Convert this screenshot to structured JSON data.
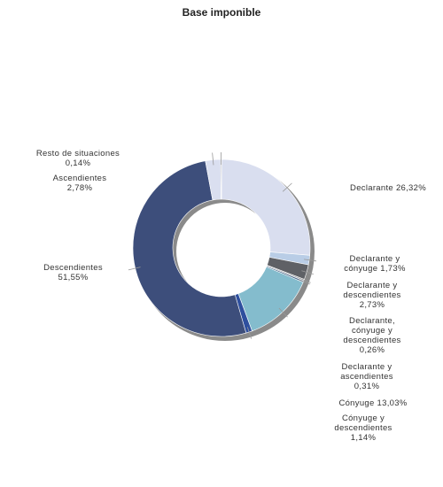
{
  "chart_data": {
    "type": "donut",
    "title": "Base imponible",
    "categories": [
      "Declarante",
      "Declarante y cónyuge",
      "Declarante y descendientes",
      "Declarante, cónyuge y descendientes",
      "Declarante y ascendientes",
      "Cónyuge",
      "Cónyuge y descendientes",
      "Descendientes",
      "Ascendientes",
      "Resto de situaciones"
    ],
    "values": [
      26.32,
      1.73,
      2.73,
      0.26,
      0.31,
      13.03,
      1.14,
      51.55,
      2.78,
      0.14
    ],
    "value_labels": [
      "26,32%",
      "1,73%",
      "2,73%",
      "0,26%",
      "0,31%",
      "13,03%",
      "1,14%",
      "51,55%",
      "2,78%",
      "0,14%"
    ],
    "colors": [
      "#d9deef",
      "#b9cde6",
      "#5f6166",
      "#9a9ca0",
      "#4d6a8c",
      "#84bccd",
      "#2e4f9e",
      "#3d4e7b",
      "#dadff0",
      "#6a6a6a"
    ]
  }
}
